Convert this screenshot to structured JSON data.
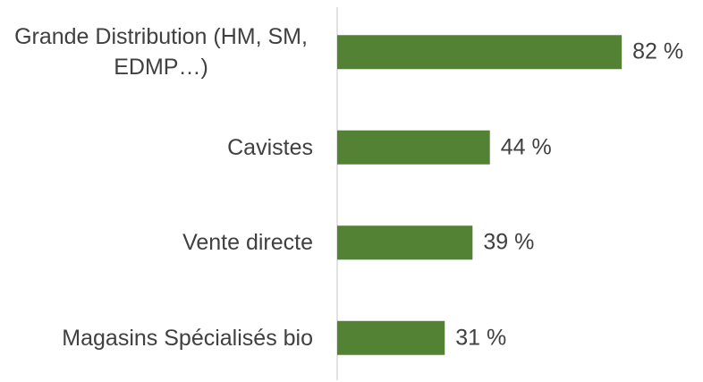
{
  "chart_data": {
    "type": "bar",
    "orientation": "horizontal",
    "categories": [
      "Grande Distribution (HM, SM, EDMP…)",
      "Cavistes",
      "Vente directe",
      "Magasins Spécialisés bio"
    ],
    "values": [
      82,
      44,
      39,
      31
    ],
    "value_labels": [
      "82 %",
      "44 %",
      "39 %",
      "31 %"
    ],
    "color": "#548235"
  }
}
